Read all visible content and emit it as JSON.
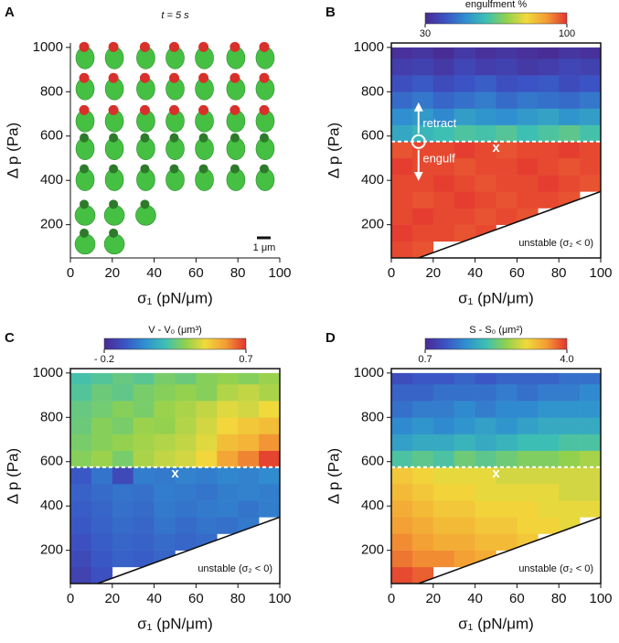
{
  "chart_data": [
    {
      "type": "scatter",
      "panel": "A",
      "title": "t = 5 s",
      "xlabel": "σ₁ (pN/μm)",
      "ylabel": "Δ p (Pa)",
      "xlim": [
        0,
        100
      ],
      "ylim": [
        50,
        1020
      ],
      "xticks": [
        0,
        20,
        40,
        60,
        80,
        100
      ],
      "yticks": [
        200,
        400,
        600,
        800,
        1000
      ],
      "body_color": "#45c043",
      "scalebar_label": "1 μm",
      "series": [
        {
          "color": "#d8302a",
          "x": [
            7,
            21,
            36,
            50,
            64,
            79,
            93,
            7,
            21,
            36,
            50,
            64,
            79,
            93,
            7,
            21,
            36,
            50,
            64,
            79,
            93
          ],
          "y": [
            965,
            965,
            965,
            965,
            965,
            965,
            965,
            825,
            825,
            825,
            825,
            825,
            825,
            825,
            680,
            680,
            680,
            680,
            680,
            680,
            680
          ]
        },
        {
          "color": "#2d7a2b",
          "x": [
            7,
            21,
            36,
            50,
            64,
            79,
            93,
            7,
            21,
            36,
            50,
            64,
            79,
            93,
            7,
            21,
            36,
            7,
            21
          ],
          "y": [
            555,
            555,
            555,
            555,
            555,
            555,
            555,
            415,
            415,
            415,
            415,
            415,
            415,
            415,
            255,
            255,
            255,
            125,
            125
          ]
        }
      ]
    },
    {
      "type": "heatmap",
      "panel": "B",
      "xlabel": "σ₁ (pN/μm)",
      "ylabel": "Δ p (Pa)",
      "xlim": [
        0,
        100
      ],
      "ylim": [
        50,
        1020
      ],
      "xticks": [
        0,
        20,
        40,
        60,
        80,
        100
      ],
      "yticks": [
        200,
        400,
        600,
        800,
        1000
      ],
      "colorbar_title": "engulfment %",
      "clim": [
        30,
        100
      ],
      "cticks": [
        30,
        100
      ],
      "colormap": [
        "#4b2991",
        "#3b53c4",
        "#2f8fd0",
        "#3dbfb4",
        "#8fd14f",
        "#f2d93b",
        "#f39c34",
        "#e3342f"
      ],
      "xbins": [
        0,
        10,
        20,
        30,
        40,
        50,
        60,
        70,
        80,
        90,
        100
      ],
      "ybins": [
        50,
        125,
        200,
        275,
        350,
        425,
        500,
        575,
        650,
        725,
        800,
        875,
        950,
        1000
      ],
      "values": [
        [
          98,
          97,
          null,
          null,
          null,
          null,
          null,
          null,
          null,
          null
        ],
        [
          99,
          98,
          98,
          97,
          98,
          null,
          null,
          null,
          null,
          null
        ],
        [
          98,
          99,
          98,
          98,
          97,
          98,
          97,
          null,
          null,
          null
        ],
        [
          98,
          97,
          98,
          99,
          98,
          97,
          98,
          98,
          97,
          null
        ],
        [
          98,
          98,
          99,
          98,
          97,
          98,
          98,
          99,
          98,
          97
        ],
        [
          99,
          98,
          98,
          97,
          98,
          98,
          99,
          98,
          97,
          98
        ],
        [
          97,
          98,
          98,
          99,
          98,
          97,
          98,
          98,
          99,
          98
        ],
        [
          55,
          58,
          60,
          62,
          61,
          63,
          60,
          62,
          64,
          61
        ],
        [
          50,
          52,
          49,
          53,
          51,
          50,
          52,
          54,
          51,
          53
        ],
        [
          44,
          46,
          43,
          45,
          47,
          44,
          46,
          45,
          44,
          46
        ],
        [
          39,
          41,
          38,
          40,
          42,
          39,
          40,
          41,
          38,
          40
        ],
        [
          35,
          36,
          34,
          37,
          35,
          36,
          34,
          35,
          37,
          36
        ],
        [
          32,
          33,
          31,
          34,
          32,
          33,
          32,
          31,
          33,
          32
        ]
      ],
      "threshold": 575,
      "boundary": {
        "x": [
          13,
          100
        ],
        "y": [
          50,
          350
        ]
      },
      "boundary_label": "unstable (σ₂ < 0)",
      "marker": {
        "x": 13,
        "y": 575
      },
      "annotations": [
        {
          "text": "retract",
          "x": 15,
          "y": 655
        },
        {
          "text": "engulf",
          "x": 15,
          "y": 495
        },
        {
          "text": "x",
          "x": 50,
          "y": 545
        }
      ]
    },
    {
      "type": "heatmap",
      "panel": "C",
      "xlabel": "σ₁ (pN/μm)",
      "ylabel": "Δ p (Pa)",
      "xlim": [
        0,
        100
      ],
      "ylim": [
        50,
        1020
      ],
      "xticks": [
        0,
        20,
        40,
        60,
        80,
        100
      ],
      "yticks": [
        200,
        400,
        600,
        800,
        1000
      ],
      "colorbar_title": "V - V₀ (μm³)",
      "clim": [
        -0.2,
        0.7
      ],
      "cticks": [
        {
          "value": -0.2,
          "label": "- 0.2"
        },
        0.7
      ],
      "colormap": [
        "#4b2991",
        "#3b53c4",
        "#2f8fd0",
        "#3dbfb4",
        "#8fd14f",
        "#f2d93b",
        "#f39c34",
        "#e3342f"
      ],
      "xbins": [
        0,
        10,
        20,
        30,
        40,
        50,
        60,
        70,
        80,
        90,
        100
      ],
      "ybins": [
        50,
        125,
        200,
        275,
        350,
        425,
        500,
        575,
        650,
        725,
        800,
        875,
        950,
        1000
      ],
      "values": [
        [
          -0.12,
          -0.08,
          null,
          null,
          null,
          null,
          null,
          null,
          null,
          null
        ],
        [
          -0.1,
          -0.06,
          -0.04,
          -0.05,
          -0.03,
          null,
          null,
          null,
          null,
          null
        ],
        [
          -0.08,
          -0.05,
          -0.03,
          -0.04,
          -0.02,
          -0.03,
          -0.02,
          null,
          null,
          null
        ],
        [
          -0.06,
          -0.04,
          -0.02,
          -0.03,
          0.0,
          -0.02,
          0.0,
          -0.01,
          0.01,
          null
        ],
        [
          -0.05,
          -0.03,
          -0.01,
          -0.02,
          0.01,
          0.0,
          0.01,
          0.02,
          0.0,
          0.02
        ],
        [
          -0.04,
          -0.02,
          0.0,
          -0.01,
          0.02,
          0.01,
          0.0,
          0.02,
          0.03,
          0.02
        ],
        [
          -0.06,
          0.0,
          -0.1,
          0.02,
          0.01,
          0.03,
          0.02,
          0.04,
          0.03,
          0.05
        ],
        [
          0.3,
          0.33,
          0.28,
          0.35,
          0.38,
          0.4,
          0.45,
          0.55,
          0.6,
          0.68
        ],
        [
          0.28,
          0.3,
          0.32,
          0.34,
          0.36,
          0.38,
          0.42,
          0.5,
          0.52,
          0.58
        ],
        [
          0.26,
          0.3,
          0.28,
          0.33,
          0.32,
          0.36,
          0.4,
          0.45,
          0.48,
          0.5
        ],
        [
          0.25,
          0.27,
          0.3,
          0.28,
          0.33,
          0.35,
          0.38,
          0.42,
          0.4,
          0.44
        ],
        [
          0.22,
          0.26,
          0.24,
          0.28,
          0.3,
          0.32,
          0.3,
          0.36,
          0.38,
          0.35
        ],
        [
          0.2,
          0.22,
          0.25,
          0.23,
          0.28,
          0.26,
          0.3,
          0.32,
          0.3,
          0.33
        ]
      ],
      "threshold": 575,
      "boundary": {
        "x": [
          13,
          100
        ],
        "y": [
          50,
          350
        ]
      },
      "boundary_label": "unstable (σ₂ < 0)",
      "annotations": [
        {
          "text": "x",
          "x": 50,
          "y": 545
        }
      ]
    },
    {
      "type": "heatmap",
      "panel": "D",
      "xlabel": "σ₁ (pN/μm)",
      "ylabel": "Δ p (Pa)",
      "xlim": [
        0,
        100
      ],
      "ylim": [
        50,
        1020
      ],
      "xticks": [
        0,
        20,
        40,
        60,
        80,
        100
      ],
      "yticks": [
        200,
        400,
        600,
        800,
        1000
      ],
      "colorbar_title": "S - S₀ (μm²)",
      "clim": [
        0.7,
        4.0
      ],
      "cticks": [
        0.7,
        {
          "value": 4,
          "label": "4.0"
        }
      ],
      "colormap": [
        "#4b2991",
        "#3b53c4",
        "#2f8fd0",
        "#3dbfb4",
        "#8fd14f",
        "#f2d93b",
        "#f39c34",
        "#e3342f"
      ],
      "xbins": [
        0,
        10,
        20,
        30,
        40,
        50,
        60,
        70,
        80,
        90,
        100
      ],
      "ybins": [
        50,
        125,
        200,
        275,
        350,
        425,
        500,
        575,
        650,
        725,
        800,
        875,
        950,
        1000
      ],
      "values": [
        [
          3.9,
          3.8,
          null,
          null,
          null,
          null,
          null,
          null,
          null,
          null
        ],
        [
          3.7,
          3.6,
          3.6,
          3.5,
          3.4,
          null,
          null,
          null,
          null,
          null
        ],
        [
          3.6,
          3.5,
          3.4,
          3.4,
          3.3,
          3.3,
          3.2,
          null,
          null,
          null
        ],
        [
          3.5,
          3.4,
          3.3,
          3.3,
          3.2,
          3.2,
          3.1,
          3.1,
          3.0,
          null
        ],
        [
          3.4,
          3.3,
          3.2,
          3.2,
          3.1,
          3.1,
          3.1,
          3.0,
          3.0,
          3.0
        ],
        [
          3.3,
          3.2,
          3.1,
          3.1,
          3.0,
          3.0,
          3.0,
          3.0,
          2.9,
          2.9
        ],
        [
          3.2,
          3.1,
          3.0,
          3.0,
          3.0,
          2.9,
          2.9,
          2.9,
          2.9,
          2.9
        ],
        [
          2.2,
          2.3,
          2.2,
          2.4,
          2.3,
          2.4,
          2.5,
          2.5,
          2.6,
          2.7
        ],
        [
          1.8,
          1.9,
          1.9,
          2.0,
          1.9,
          2.0,
          2.1,
          2.1,
          2.2,
          2.2
        ],
        [
          1.6,
          1.7,
          1.6,
          1.7,
          1.8,
          1.7,
          1.8,
          1.9,
          1.9,
          1.9
        ],
        [
          1.4,
          1.5,
          1.5,
          1.6,
          1.5,
          1.6,
          1.6,
          1.7,
          1.7,
          1.7
        ],
        [
          1.3,
          1.3,
          1.4,
          1.4,
          1.4,
          1.5,
          1.4,
          1.5,
          1.5,
          1.6
        ],
        [
          1.1,
          1.2,
          1.2,
          1.3,
          1.2,
          1.3,
          1.3,
          1.3,
          1.4,
          1.4
        ]
      ],
      "threshold": 575,
      "boundary": {
        "x": [
          13,
          100
        ],
        "y": [
          50,
          350
        ]
      },
      "boundary_label": "unstable (σ₂ < 0)",
      "annotations": [
        {
          "text": "x",
          "x": 50,
          "y": 545
        }
      ]
    }
  ]
}
